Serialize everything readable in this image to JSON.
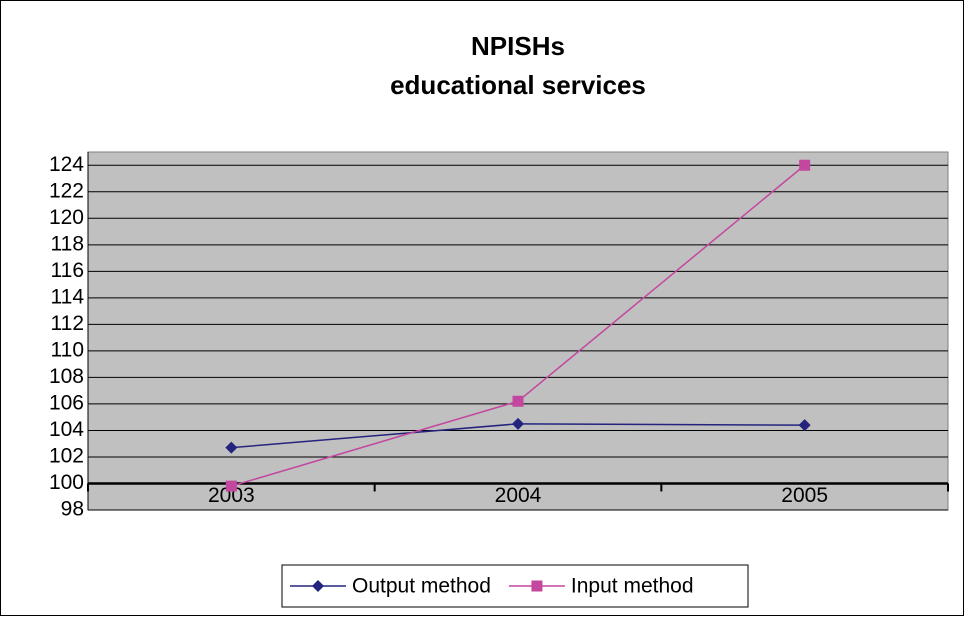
{
  "chart_data": {
    "type": "line",
    "title": "NPISHs",
    "subtitle": "educational services",
    "categories": [
      "2003",
      "2004",
      "2005"
    ],
    "series": [
      {
        "name": "Output method",
        "color": "#24247e",
        "marker": "diamond",
        "values": [
          102.7,
          104.5,
          104.4
        ]
      },
      {
        "name": "Input method",
        "color": "#c4479f",
        "marker": "square",
        "values": [
          99.8,
          106.2,
          124.0
        ]
      }
    ],
    "ylim": [
      98,
      125
    ],
    "yticks": [
      98,
      100,
      102,
      104,
      106,
      108,
      110,
      112,
      114,
      116,
      118,
      120,
      122,
      124
    ],
    "x_axis_crosses": 100,
    "grid": true,
    "legend": "bottom"
  }
}
